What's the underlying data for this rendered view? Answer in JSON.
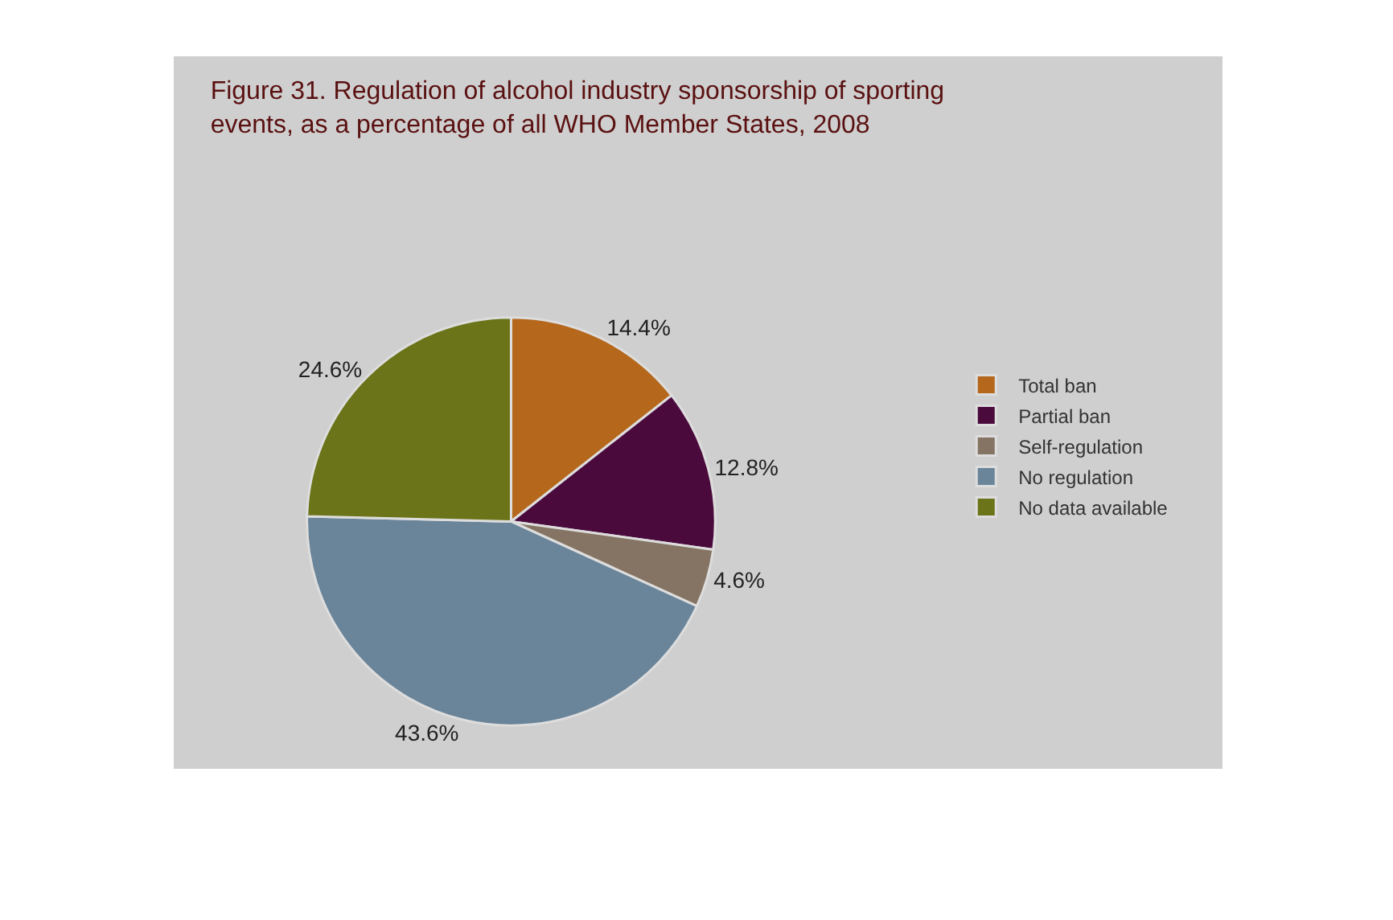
{
  "chart_data": {
    "type": "pie",
    "title": "Figure 31. Regulation of alcohol industry sponsorship of sporting events, as a percentage of all WHO Member States, 2008",
    "categories": [
      "Total ban",
      "Partial ban",
      "Self-regulation",
      "No regulation",
      "No data available"
    ],
    "values": [
      14.4,
      12.8,
      4.6,
      43.6,
      24.6
    ],
    "value_labels": [
      "14.4%",
      "12.8%",
      "4.6%",
      "43.6%",
      "24.6%"
    ],
    "colors": [
      "#b5671c",
      "#4b0a3c",
      "#857463",
      "#6a8499",
      "#6b7418"
    ],
    "legend": "right"
  }
}
